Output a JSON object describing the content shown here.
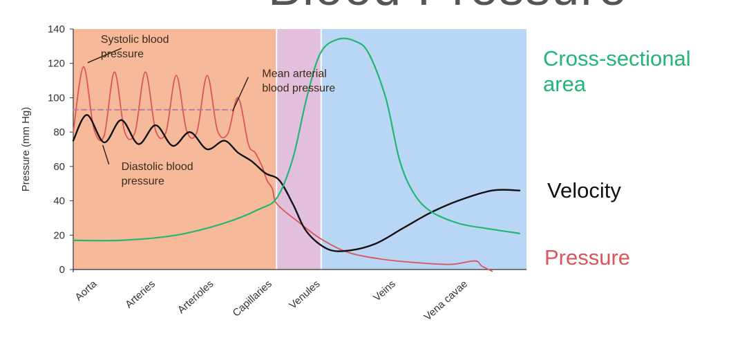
{
  "page": {
    "title": "Blood Pressure"
  },
  "colors": {
    "zone_arterial": "#f6b99a",
    "zone_capillary": "#e2bfdd",
    "zone_venous": "#b9d6f4",
    "pressure": "#d9555a",
    "cross_section": "#22b573",
    "velocity": "#111111",
    "mean": "#b07aa8"
  },
  "side_labels": {
    "cross_section": "Cross-sectional area",
    "velocity": "Velocity",
    "pressure": "Pressure"
  },
  "chart_data": {
    "type": "line",
    "ylabel": "Pressure (mm Hg)",
    "ylim": [
      0,
      140
    ],
    "yticks": [
      0,
      20,
      40,
      60,
      80,
      100,
      120,
      140
    ],
    "xlim": [
      0,
      6.6
    ],
    "categories": [
      {
        "label": "Aorta",
        "x": 0.35
      },
      {
        "label": "Arteries",
        "x": 1.2
      },
      {
        "label": "Arterioles",
        "x": 2.05
      },
      {
        "label": "Capillaries",
        "x": 2.9
      },
      {
        "label": "Venules",
        "x": 3.6
      },
      {
        "label": "Veins",
        "x": 4.7
      },
      {
        "label": "Vena cavae",
        "x": 5.75
      }
    ],
    "zones": [
      {
        "name": "arterial",
        "from": 0,
        "to": 2.95
      },
      {
        "name": "capillary",
        "from": 2.97,
        "to": 3.6
      },
      {
        "name": "venous",
        "from": 3.62,
        "to": 6.6
      }
    ],
    "annotations": [
      {
        "text": "Systolic blood pressure",
        "x": 0.3,
        "y": 132
      },
      {
        "text": "Mean arterial blood pressure",
        "x": 2.65,
        "y": 112
      },
      {
        "text": "Diastolic blood pressure",
        "x": 0.6,
        "y": 58
      }
    ],
    "series": [
      {
        "name": "Pressure",
        "points": [
          [
            0,
            80
          ],
          [
            0.15,
            118
          ],
          [
            0.3,
            82
          ],
          [
            0.45,
            78
          ],
          [
            0.6,
            115
          ],
          [
            0.75,
            80
          ],
          [
            0.9,
            80
          ],
          [
            1.05,
            115
          ],
          [
            1.2,
            81
          ],
          [
            1.35,
            80
          ],
          [
            1.5,
            113
          ],
          [
            1.65,
            81
          ],
          [
            1.8,
            80
          ],
          [
            1.95,
            113
          ],
          [
            2.1,
            81
          ],
          [
            2.25,
            79
          ],
          [
            2.4,
            100
          ],
          [
            2.55,
            73
          ],
          [
            2.65,
            68
          ],
          [
            2.75,
            60
          ],
          [
            2.82,
            52
          ],
          [
            2.9,
            47
          ],
          [
            2.97,
            38
          ],
          [
            3.3,
            27
          ],
          [
            3.6,
            18
          ],
          [
            4,
            10
          ],
          [
            4.5,
            6
          ],
          [
            5,
            4
          ],
          [
            5.5,
            3
          ],
          [
            5.85,
            5
          ],
          [
            5.95,
            2
          ],
          [
            6.1,
            -1
          ]
        ]
      },
      {
        "name": "Mean arterial blood pressure",
        "points": [
          [
            0,
            93
          ],
          [
            2.3,
            93
          ]
        ]
      },
      {
        "name": "Velocity",
        "points": [
          [
            0,
            75
          ],
          [
            0.2,
            90
          ],
          [
            0.45,
            74
          ],
          [
            0.7,
            87
          ],
          [
            0.95,
            73
          ],
          [
            1.2,
            84
          ],
          [
            1.45,
            72
          ],
          [
            1.7,
            80
          ],
          [
            1.95,
            70
          ],
          [
            2.2,
            75
          ],
          [
            2.4,
            68
          ],
          [
            2.6,
            63
          ],
          [
            2.8,
            56
          ],
          [
            3,
            52
          ],
          [
            3.2,
            38
          ],
          [
            3.4,
            22
          ],
          [
            3.7,
            12
          ],
          [
            4,
            11
          ],
          [
            4.4,
            15
          ],
          [
            4.8,
            24
          ],
          [
            5.2,
            33
          ],
          [
            5.6,
            40
          ],
          [
            6.1,
            46
          ],
          [
            6.5,
            46
          ]
        ]
      },
      {
        "name": "Cross-sectional area",
        "points": [
          [
            0,
            17
          ],
          [
            0.7,
            17
          ],
          [
            1.5,
            20
          ],
          [
            2.2,
            27
          ],
          [
            2.7,
            35
          ],
          [
            2.97,
            42
          ],
          [
            3.2,
            65
          ],
          [
            3.4,
            100
          ],
          [
            3.6,
            126
          ],
          [
            3.85,
            134
          ],
          [
            4.1,
            133
          ],
          [
            4.3,
            126
          ],
          [
            4.55,
            100
          ],
          [
            4.75,
            64
          ],
          [
            4.95,
            45
          ],
          [
            5.2,
            34
          ],
          [
            5.6,
            27
          ],
          [
            6,
            24
          ],
          [
            6.5,
            21
          ]
        ]
      }
    ]
  }
}
